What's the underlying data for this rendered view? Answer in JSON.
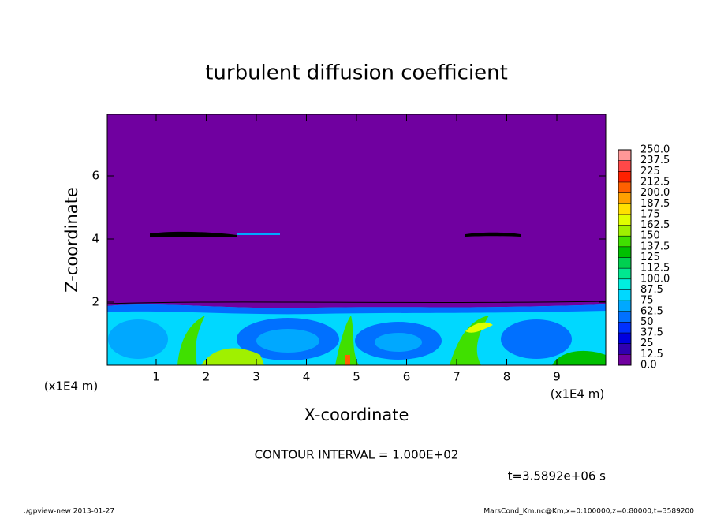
{
  "chart_data": {
    "type": "contour",
    "title": "turbulent diffusion coefficient",
    "x_label": "X-coordinate",
    "y_label": "Z-coordinate",
    "x_unit_left": "(x1E4 m)",
    "x_unit_right": "(x1E4 m)",
    "xlim": [
      0,
      10
    ],
    "ylim": [
      0,
      8
    ],
    "xticks": [
      1,
      2,
      3,
      4,
      5,
      6,
      7,
      8,
      9
    ],
    "yticks": [
      2,
      4,
      6
    ],
    "background_color": "#7000a0",
    "colorbar": {
      "levels": [
        {
          "value": 0,
          "label": "0.0"
        },
        12.5,
        25,
        37.5,
        50,
        62.5,
        75,
        87.5,
        {
          "value": 100,
          "label": "100.0"
        },
        112.5,
        125,
        137.5,
        150,
        162.5,
        175,
        187.5,
        {
          "value": 200,
          "label": "200.0"
        },
        212.5,
        225,
        237.5,
        {
          "value": 250,
          "label": "250.0"
        }
      ],
      "colors": [
        "#7000a0",
        "#3000b0",
        "#0000e0",
        "#0030ff",
        "#0070ff",
        "#00a8ff",
        "#00d8ff",
        "#00f0e0",
        "#00e890",
        "#00d050",
        "#00c000",
        "#40e000",
        "#a0f000",
        "#e0ff00",
        "#ffe000",
        "#ffa000",
        "#ff6000",
        "#ff2000",
        "#ff4848",
        "#ff9898"
      ]
    },
    "contour_interval": "CONTOUR INTERVAL = 1.000E+02",
    "time_label": "t=3.5892e+06 s",
    "footer_left": "./gpview-new  2013-01-27",
    "footer_right": "MarsCond_Km.nc@Km,x=0:100000,z=0:80000,t=3589200"
  }
}
